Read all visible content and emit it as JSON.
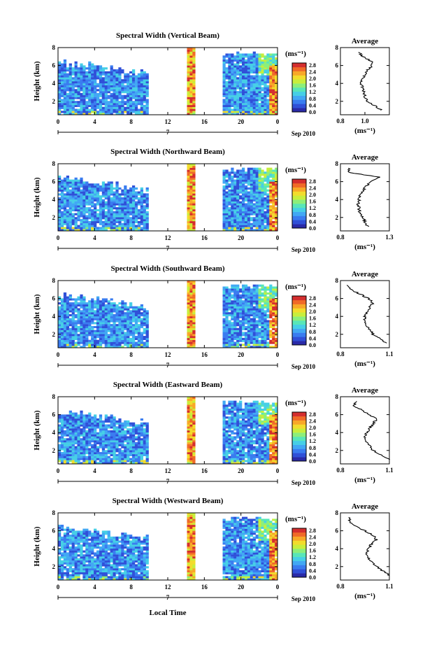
{
  "chart_data": {
    "type": "heatmap",
    "x_label_global": "Local Time",
    "date_label": "Sep 2010",
    "day_label": "7",
    "colorscale": [
      "#2a2aa8",
      "#3050d8",
      "#3a7cf0",
      "#42a8f4",
      "#46cfe6",
      "#58e6b8",
      "#8cef7a",
      "#c8ee3c",
      "#f2dc2c",
      "#f8a828",
      "#f06a28",
      "#d42e2e"
    ],
    "colorbar_unit": "(ms⁻¹)",
    "colorbar_ticks": [
      "0.0",
      "0.4",
      "0.8",
      "1.2",
      "1.6",
      "2.0",
      "2.4",
      "2.8"
    ],
    "heat_x_ticks": [
      "0",
      "4",
      "8",
      "12",
      "16",
      "20",
      "0"
    ],
    "heat_y_ticks": [
      "2",
      "4",
      "6",
      "8"
    ],
    "heat_ylabel": "Height (km)",
    "xlim_hours": [
      0,
      24
    ],
    "ylim_km": [
      0.5,
      8
    ],
    "avg_title": "Average",
    "avg_xunit": "(ms⁻¹)",
    "avg_y_ticks": [
      "2",
      "4",
      "6",
      "8"
    ],
    "data_gaps_hours": [
      [
        9.8,
        14.1
      ],
      [
        14.9,
        18.0
      ]
    ],
    "panels": [
      {
        "title": "Spectral Width (Vertical Beam)",
        "avg_x_ticks": [
          "0.8",
          "1.0"
        ],
        "avg_xlim": [
          0.8,
          1.2
        ],
        "avg_tick_values": [
          0.8,
          1.0
        ],
        "avg_profile": {
          "height_km": [
            1,
            1.5,
            2,
            2.5,
            3,
            3.5,
            4,
            4.5,
            5,
            5.5,
            6,
            6.5,
            7,
            7.5
          ],
          "value": [
            1.14,
            1.08,
            1.02,
            1.0,
            0.99,
            0.98,
            0.97,
            0.98,
            1.0,
            1.02,
            1.06,
            1.05,
            0.98,
            0.95
          ]
        }
      },
      {
        "title": "Spectral Width (Northward Beam)",
        "avg_x_ticks": [
          "0.8",
          "1.3"
        ],
        "avg_xlim": [
          0.8,
          1.3
        ],
        "avg_tick_values": [
          0.8,
          1.3
        ],
        "avg_profile": {
          "height_km": [
            1,
            1.5,
            2,
            2.5,
            3,
            3.5,
            4,
            4.5,
            5,
            5.5,
            6,
            6.5,
            7,
            7.5
          ],
          "value": [
            1.08,
            1.05,
            1.03,
            1.0,
            0.99,
            0.98,
            0.99,
            1.0,
            1.03,
            1.06,
            1.12,
            1.2,
            0.9,
            0.88
          ]
        }
      },
      {
        "title": "Spectral Width (Southward Beam)",
        "avg_x_ticks": [
          "0.8",
          "1.1"
        ],
        "avg_xlim": [
          0.8,
          1.1
        ],
        "avg_tick_values": [
          0.8,
          1.1
        ],
        "avg_profile": {
          "height_km": [
            1,
            1.5,
            2,
            2.5,
            3,
            3.5,
            4,
            4.5,
            5,
            5.5,
            6,
            6.5,
            7,
            7.5
          ],
          "value": [
            1.08,
            1.04,
            1.0,
            0.98,
            0.96,
            0.95,
            0.95,
            0.96,
            0.98,
            1.0,
            0.97,
            0.92,
            0.86,
            0.84
          ]
        }
      },
      {
        "title": "Spectral Width (Eastward Beam)",
        "avg_x_ticks": [
          "0.8",
          "1.1"
        ],
        "avg_xlim": [
          0.8,
          1.1
        ],
        "avg_tick_values": [
          0.8,
          1.1
        ],
        "avg_profile": {
          "height_km": [
            1,
            1.5,
            2,
            2.5,
            3,
            3.5,
            4,
            4.5,
            5,
            5.5,
            6,
            6.5,
            7,
            7.5
          ],
          "value": [
            1.1,
            1.05,
            1.0,
            0.98,
            0.96,
            0.95,
            0.96,
            0.98,
            1.0,
            1.02,
            0.98,
            0.93,
            0.88,
            0.9
          ]
        }
      },
      {
        "title": "Spectral Width (Westward Beam)",
        "avg_x_ticks": [
          "0.8",
          "1.1"
        ],
        "avg_xlim": [
          0.8,
          1.1
        ],
        "avg_tick_values": [
          0.8,
          1.1
        ],
        "avg_profile": {
          "height_km": [
            1,
            1.5,
            2,
            2.5,
            3,
            3.5,
            4,
            4.5,
            5,
            5.5,
            6,
            6.5,
            7,
            7.5
          ],
          "value": [
            1.1,
            1.06,
            1.02,
            0.99,
            0.97,
            0.96,
            0.97,
            0.99,
            1.02,
            1.0,
            0.95,
            0.9,
            0.86,
            0.85
          ]
        }
      }
    ]
  }
}
